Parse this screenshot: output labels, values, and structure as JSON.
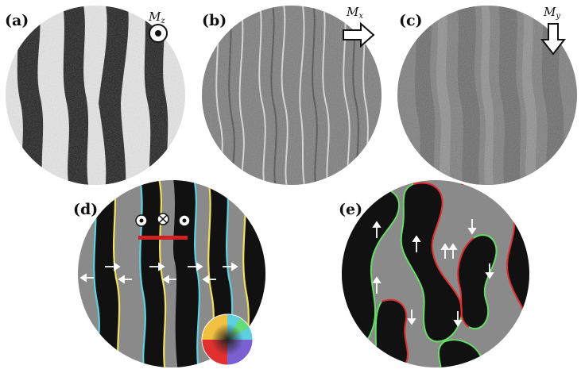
{
  "panels": [
    {
      "id": "a",
      "label": "(a)",
      "magnetization": {
        "symbol": "M",
        "subscript": "z",
        "indicator": "out-of-plane-dot-icon"
      }
    },
    {
      "id": "b",
      "label": "(b)",
      "magnetization": {
        "symbol": "M",
        "subscript": "x",
        "indicator": "arrow-right-icon"
      }
    },
    {
      "id": "c",
      "label": "(c)",
      "magnetization": {
        "symbol": "M",
        "subscript": "y",
        "indicator": "arrow-down-icon"
      }
    },
    {
      "id": "d",
      "label": "(d)",
      "insets": [
        "dot-icon",
        "cross-icon",
        "dot-icon",
        "scale-bar",
        "color-wheel"
      ]
    },
    {
      "id": "e",
      "label": "(e)"
    }
  ],
  "colors": {
    "domain_light": "#e6e6e6",
    "domain_dark": "#1e1e1e",
    "background_gray": "#8a8a8a",
    "wall_cyan": "#5fd0e0",
    "wall_yellow": "#f0e060",
    "wall_green": "#66dd66",
    "wall_red": "#e03030",
    "scale_bar": "#d02020"
  }
}
